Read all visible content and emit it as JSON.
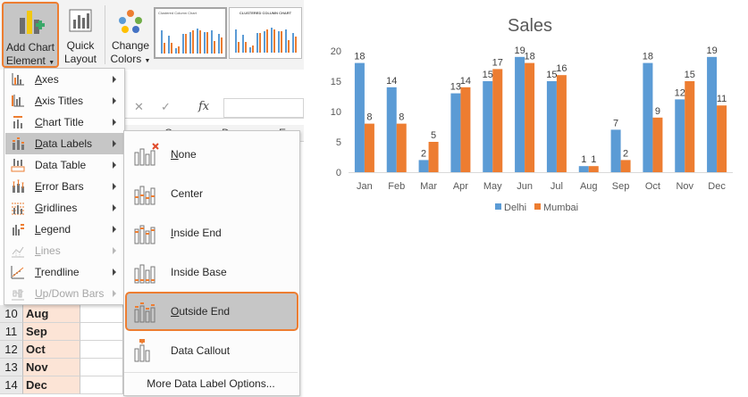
{
  "ribbon": {
    "add_chart_element": {
      "line1": "Add Chart",
      "line2": "Element",
      "icon": "add-chart-element-icon"
    },
    "quick_layout": {
      "line1": "Quick",
      "line2": "Layout",
      "icon": "quick-layout-icon"
    },
    "change_colors": {
      "line1": "Change",
      "line2": "Colors",
      "icon": "palette-icon"
    },
    "gallery": [
      {
        "label": "Clustered Column Chart",
        "selected": true
      },
      {
        "label": "CLUSTERED COLUMN CHART",
        "selected": false
      }
    ]
  },
  "formula_bar": {
    "cancel_icon": "✕",
    "confirm_icon": "✓",
    "fx": "fx"
  },
  "column_headers": [
    "C",
    "D",
    "E"
  ],
  "menu": {
    "items": [
      {
        "label": "Axes",
        "underline": "A",
        "rest": "xes",
        "has_submenu": true,
        "disabled": false,
        "active": false,
        "icon": "axes-icon"
      },
      {
        "label": "Axis Titles",
        "underline": "A",
        "rest": "xis Titles",
        "has_submenu": true,
        "disabled": false,
        "active": false,
        "icon": "axis-titles-icon"
      },
      {
        "label": "Chart Title",
        "underline": "C",
        "rest": "hart Title",
        "has_submenu": true,
        "disabled": false,
        "active": false,
        "icon": "chart-title-icon"
      },
      {
        "label": "Data Labels",
        "underline": "D",
        "rest": "ata Labels",
        "has_submenu": true,
        "disabled": false,
        "active": true,
        "icon": "data-labels-icon"
      },
      {
        "label": "Data Table",
        "underline": "",
        "rest": "Data Table",
        "has_submenu": true,
        "disabled": false,
        "active": false,
        "icon": "data-table-icon"
      },
      {
        "label": "Error Bars",
        "underline": "E",
        "rest": "rror Bars",
        "has_submenu": true,
        "disabled": false,
        "active": false,
        "icon": "error-bars-icon"
      },
      {
        "label": "Gridlines",
        "underline": "G",
        "rest": "ridlines",
        "has_submenu": true,
        "disabled": false,
        "active": false,
        "icon": "gridlines-icon"
      },
      {
        "label": "Legend",
        "underline": "L",
        "rest": "egend",
        "has_submenu": true,
        "disabled": false,
        "active": false,
        "icon": "legend-icon"
      },
      {
        "label": "Lines",
        "underline": "L",
        "rest": "ines",
        "has_submenu": true,
        "disabled": true,
        "active": false,
        "icon": "lines-icon"
      },
      {
        "label": "Trendline",
        "underline": "T",
        "rest": "rendline",
        "has_submenu": true,
        "disabled": false,
        "active": false,
        "icon": "trendline-icon"
      },
      {
        "label": "Up/Down Bars",
        "underline": "U",
        "rest": "p/Down Bars",
        "has_submenu": true,
        "disabled": true,
        "active": false,
        "icon": "up-down-bars-icon"
      }
    ]
  },
  "submenu": {
    "items": [
      {
        "label": "None",
        "underline": "N",
        "rest": "one",
        "active": false,
        "icon": "data-labels-none-icon"
      },
      {
        "label": "Center",
        "underline": "",
        "rest": "Center",
        "active": false,
        "icon": "data-labels-center-icon"
      },
      {
        "label": "Inside End",
        "underline": "I",
        "rest": "nside End",
        "active": false,
        "icon": "data-labels-inside-end-icon"
      },
      {
        "label": "Inside Base",
        "underline": "",
        "rest": "Inside Base",
        "active": false,
        "icon": "data-labels-inside-base-icon"
      },
      {
        "label": "Outside End",
        "underline": "O",
        "rest": "utside End",
        "active": true,
        "icon": "data-labels-outside-end-icon"
      },
      {
        "label": "Data Callout",
        "underline": "",
        "rest": "Data Callout",
        "active": false,
        "icon": "data-labels-callout-icon"
      }
    ],
    "more": "More Data Label Options..."
  },
  "sheet_rows": [
    {
      "num": "10",
      "value": "Aug"
    },
    {
      "num": "11",
      "value": "Sep"
    },
    {
      "num": "12",
      "value": "Oct"
    },
    {
      "num": "13",
      "value": "Nov"
    },
    {
      "num": "14",
      "value": "Dec"
    }
  ],
  "colors": {
    "accent": "#ed7d31",
    "delhi": "#5b9bd5",
    "mumbai": "#ed7d31"
  },
  "chart_data": {
    "type": "bar",
    "title": "Sales",
    "categories": [
      "Jan",
      "Feb",
      "Mar",
      "Apr",
      "May",
      "Jun",
      "Jul",
      "Aug",
      "Sep",
      "Oct",
      "Nov",
      "Dec"
    ],
    "series": [
      {
        "name": "Delhi",
        "color": "#5b9bd5",
        "values": [
          18,
          14,
          2,
          13,
          15,
          19,
          15,
          1,
          7,
          18,
          12,
          19
        ]
      },
      {
        "name": "Mumbai",
        "color": "#ed7d31",
        "values": [
          8,
          8,
          5,
          14,
          17,
          18,
          16,
          1,
          2,
          9,
          15,
          11
        ]
      }
    ],
    "ylim": [
      0,
      20
    ],
    "yticks": [
      0,
      5,
      10,
      15,
      20
    ],
    "data_labels": "outside-end",
    "legend": "bottom",
    "grid": false
  }
}
